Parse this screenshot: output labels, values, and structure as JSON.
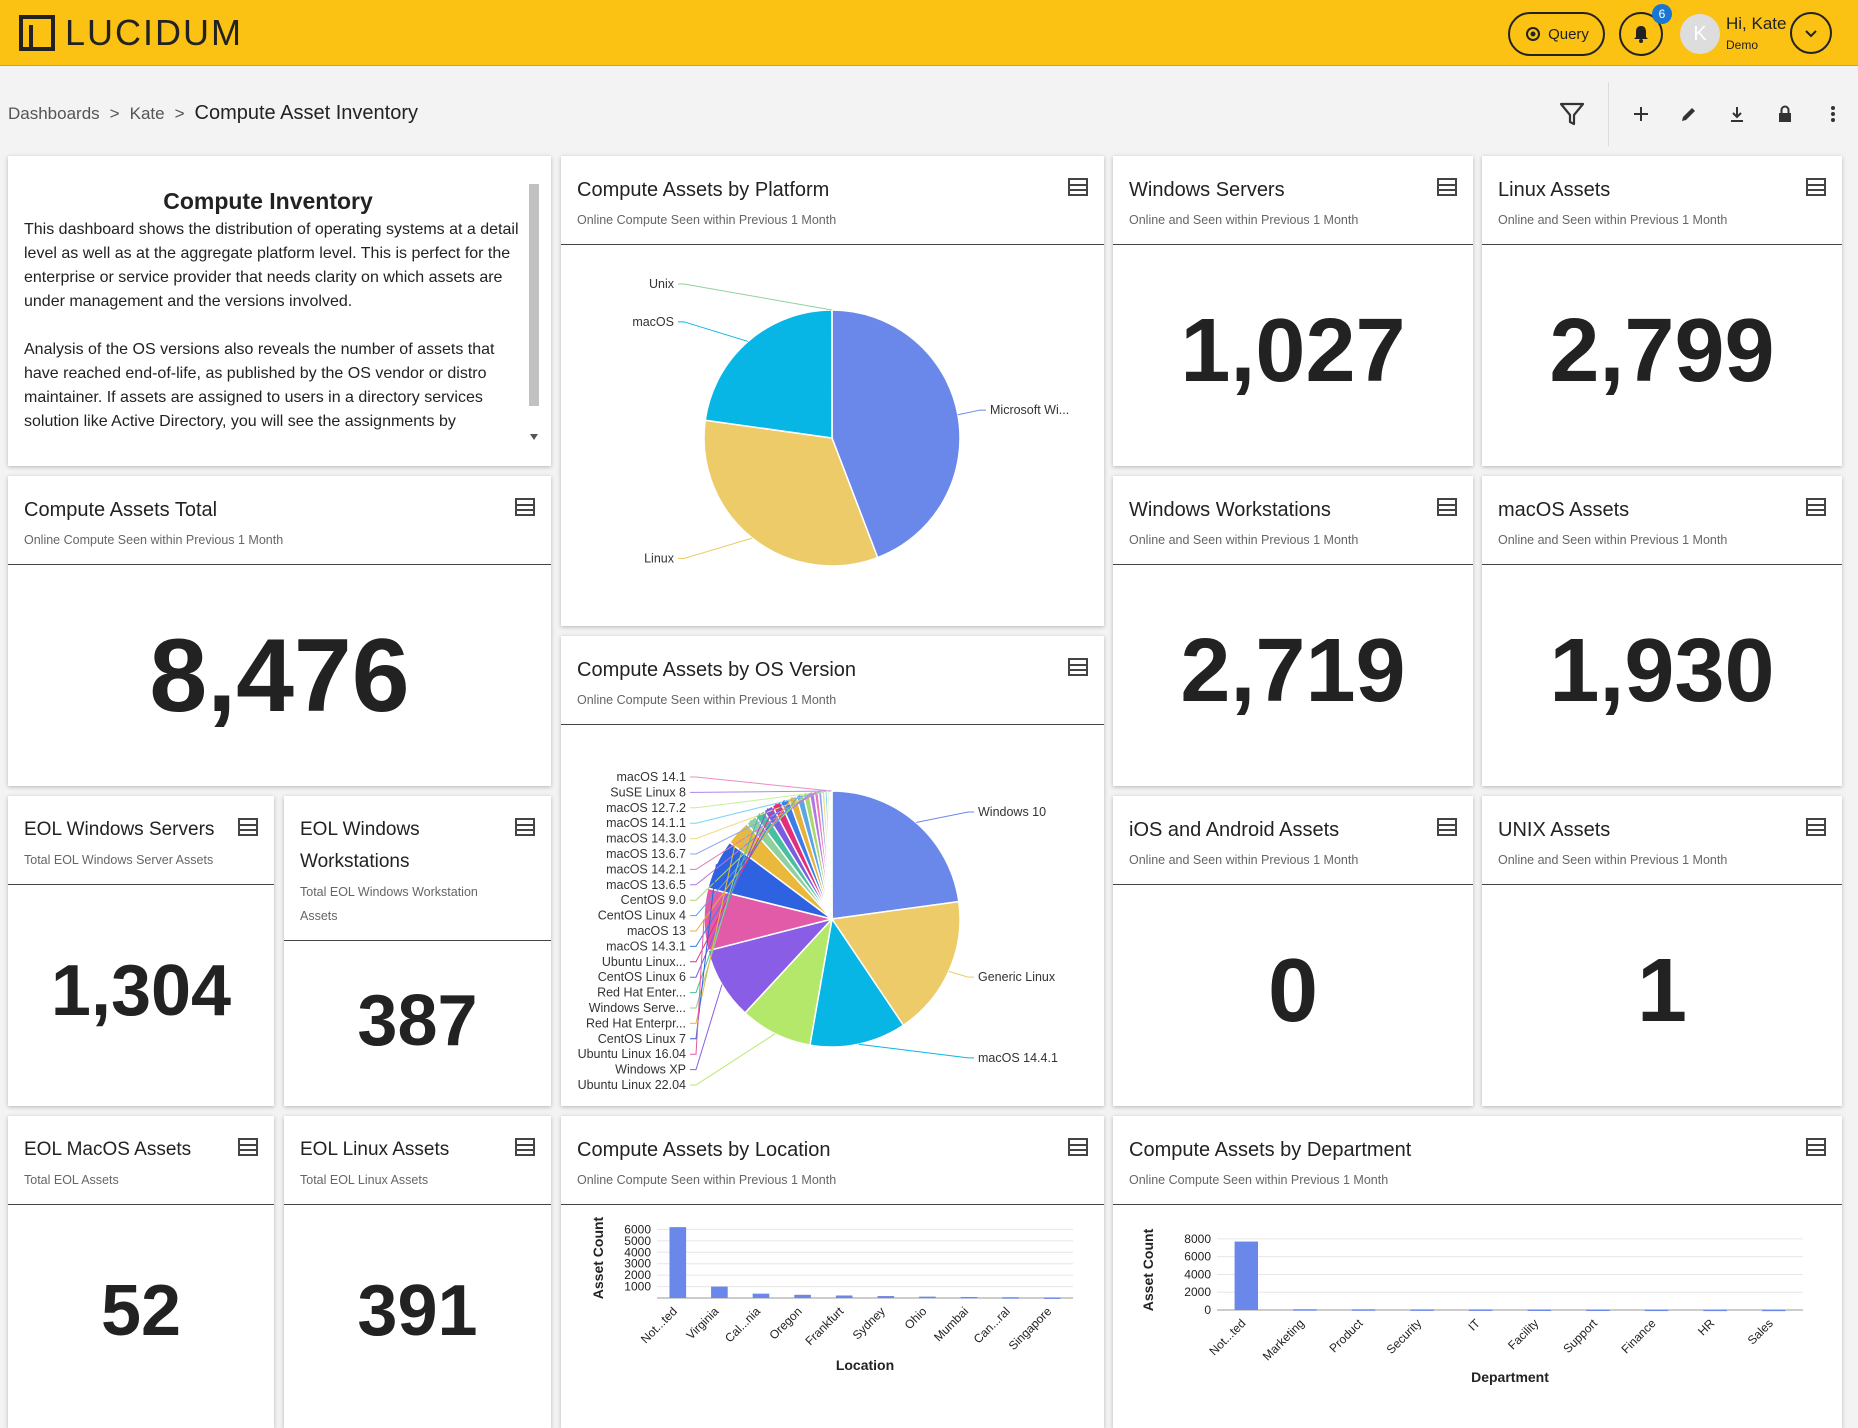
{
  "app": {
    "logo_text": "LUCIDUM"
  },
  "header": {
    "query_label": "Query",
    "notification_count": "6",
    "avatar_initial": "K",
    "user_greeting": "Hi, Kate",
    "user_role": "Demo"
  },
  "breadcrumb": {
    "items": [
      "Dashboards",
      "Kate"
    ],
    "separator": ">",
    "current": "Compute Asset Inventory"
  },
  "description": {
    "title": "Compute Inventory",
    "para1": "This dashboard shows the distribution of operating systems at a detail level as well as at the aggregate platform level. This is perfect for the enterprise or service provider that needs clarity on which assets are under management and the versions involved.",
    "para2": "Analysis of the OS versions also reveals the number of assets that have reached end-of-life, as published by the OS vendor or distro maintainer. If assets are assigned to users in a directory services solution like Active Directory, you will see the assignments by"
  },
  "cards": {
    "total": {
      "title": "Compute Assets Total",
      "subtitle": "Online Compute Seen within Previous 1 Month",
      "value": "8,476"
    },
    "windows_servers": {
      "title": "Windows Servers",
      "subtitle": "Online and Seen within Previous 1 Month",
      "value": "1,027"
    },
    "linux": {
      "title": "Linux Assets",
      "subtitle": "Online and Seen within Previous 1 Month",
      "value": "2,799"
    },
    "windows_ws": {
      "title": "Windows Workstations",
      "subtitle": "Online and Seen within Previous 1 Month",
      "value": "2,719"
    },
    "macos": {
      "title": "macOS Assets",
      "subtitle": "Online and Seen within Previous 1 Month",
      "value": "1,930"
    },
    "ios_android": {
      "title": "iOS and Android Assets",
      "subtitle": "Online and Seen within Previous 1 Month",
      "value": "0"
    },
    "unix": {
      "title": "UNIX Assets",
      "subtitle": "Online and Seen within Previous 1 Month",
      "value": "1"
    },
    "eol_win_servers": {
      "title": "EOL Windows Servers",
      "subtitle": "Total EOL Windows Server Assets",
      "value": "1,304"
    },
    "eol_win_ws": {
      "title_line1": "EOL Windows",
      "title_line2": "Workstations",
      "subtitle_line1": "Total EOL Windows Workstation",
      "subtitle_line2": "Assets",
      "value": "387"
    },
    "eol_macos": {
      "title": "EOL MacOS Assets",
      "subtitle": "Total EOL Assets",
      "value": "52"
    },
    "eol_linux": {
      "title": "EOL Linux Assets",
      "subtitle": "Total EOL Linux Assets",
      "value": "391"
    },
    "by_platform": {
      "title": "Compute Assets by Platform",
      "subtitle": "Online Compute Seen within Previous 1 Month"
    },
    "by_os_version": {
      "title": "Compute Assets by OS Version",
      "subtitle": "Online Compute Seen within Previous 1 Month"
    },
    "by_location": {
      "title": "Compute Assets by Location",
      "subtitle": "Online Compute Seen within Previous 1 Month"
    },
    "by_department": {
      "title": "Compute Assets by Department",
      "subtitle": "Online Compute Seen within Previous 1 Month"
    }
  },
  "icons": {
    "card_menu": "table-icon",
    "filter": "filter-icon",
    "add": "plus-icon",
    "edit": "pencil-icon",
    "download": "download-icon",
    "lock": "lock-icon",
    "more": "more-vertical-icon"
  },
  "colors": {
    "topbar": "#fbc214",
    "blue": "#6a88ea",
    "yellow": "#eccb68",
    "cyan": "#07b6e5",
    "green": "#b4e86b",
    "purple": "#8a5de6",
    "pink": "#e25ba8",
    "royal": "#2e62e0",
    "gold": "#eab93b"
  },
  "chart_data": [
    {
      "id": "platform",
      "type": "pie",
      "slices": [
        {
          "label": "Microsoft Wi...",
          "value": 3746,
          "color": "#6a88ea"
        },
        {
          "label": "Linux",
          "value": 2799,
          "color": "#eccb68"
        },
        {
          "label": "macOS",
          "value": 1930,
          "color": "#07b6e5"
        },
        {
          "label": "Unix",
          "value": 1,
          "color": "#8fd19e"
        }
      ]
    },
    {
      "id": "os_version",
      "type": "pie",
      "slices": [
        {
          "label": "Windows 10",
          "value": 1800,
          "color": "#6a88ea"
        },
        {
          "label": "Generic Linux",
          "value": 1400,
          "color": "#eccb68"
        },
        {
          "label": "macOS 14.4.1",
          "value": 960,
          "color": "#07b6e5"
        },
        {
          "label": "Ubuntu Linux 22.04",
          "value": 720,
          "color": "#b4e86b"
        },
        {
          "label": "Windows XP",
          "value": 720,
          "color": "#8a5de6"
        },
        {
          "label": "Ubuntu Linux 16.04",
          "value": 620,
          "color": "#e25ba8"
        },
        {
          "label": "CentOS Linux 7",
          "value": 500,
          "color": "#2e62e0"
        },
        {
          "label": "Red Hat Enterpr...",
          "value": 250,
          "color": "#eab93b"
        },
        {
          "label": "Windows Serve...",
          "value": 110,
          "color": "#8fd19e"
        },
        {
          "label": "Red Hat Enter...",
          "value": 100,
          "color": "#48c0a0"
        },
        {
          "label": "CentOS Linux 6",
          "value": 95,
          "color": "#7b5ce0"
        },
        {
          "label": "Ubuntu Linux...",
          "value": 90,
          "color": "#e0307a"
        },
        {
          "label": "macOS 14.3.1",
          "value": 85,
          "color": "#3d7ce8"
        },
        {
          "label": "macOS 13",
          "value": 80,
          "color": "#e5b03c"
        },
        {
          "label": "CentOS Linux 4",
          "value": 70,
          "color": "#5aa6e2"
        },
        {
          "label": "CentOS 9.0",
          "value": 60,
          "color": "#a7d86c"
        },
        {
          "label": "macOS 13.6.5",
          "value": 50,
          "color": "#b276e6"
        },
        {
          "label": "macOS 14.2.1",
          "value": 40,
          "color": "#e876b9"
        },
        {
          "label": "macOS 13.6.7",
          "value": 35,
          "color": "#8ea6f0"
        },
        {
          "label": "macOS 14.3.0",
          "value": 30,
          "color": "#f0d98a"
        },
        {
          "label": "macOS 14.1.1",
          "value": 25,
          "color": "#7cd4f0"
        },
        {
          "label": "macOS 12.7.2",
          "value": 20,
          "color": "#c9ee98"
        },
        {
          "label": "SuSE Linux 8",
          "value": 15,
          "color": "#a98ae8"
        },
        {
          "label": "macOS 14.1",
          "value": 10,
          "color": "#eb8cc4"
        }
      ]
    },
    {
      "id": "location",
      "type": "bar",
      "xlabel": "Location",
      "ylabel": "Asset Count",
      "ylim": [
        0,
        7000
      ],
      "yticks": [
        1000,
        2000,
        3000,
        4000,
        5000,
        6000
      ],
      "categories": [
        "Not...ted",
        "Virginia",
        "Cal...nia",
        "Oregon",
        "Frankfurt",
        "Sydney",
        "Ohio",
        "Mumbai",
        "Can...ral",
        "Singapore"
      ],
      "values": [
        6200,
        1000,
        380,
        280,
        220,
        170,
        120,
        90,
        70,
        50
      ]
    },
    {
      "id": "department",
      "type": "bar",
      "xlabel": "Department",
      "ylabel": "Asset Count",
      "ylim": [
        0,
        9000
      ],
      "yticks": [
        0,
        2000,
        4000,
        6000,
        8000
      ],
      "categories": [
        "Not...ted",
        "Marketing",
        "Product",
        "Security",
        "IT",
        "Facility",
        "Support",
        "Finance",
        "HR",
        "Sales"
      ],
      "values": [
        7700,
        90,
        80,
        70,
        65,
        60,
        55,
        50,
        45,
        40
      ]
    }
  ]
}
